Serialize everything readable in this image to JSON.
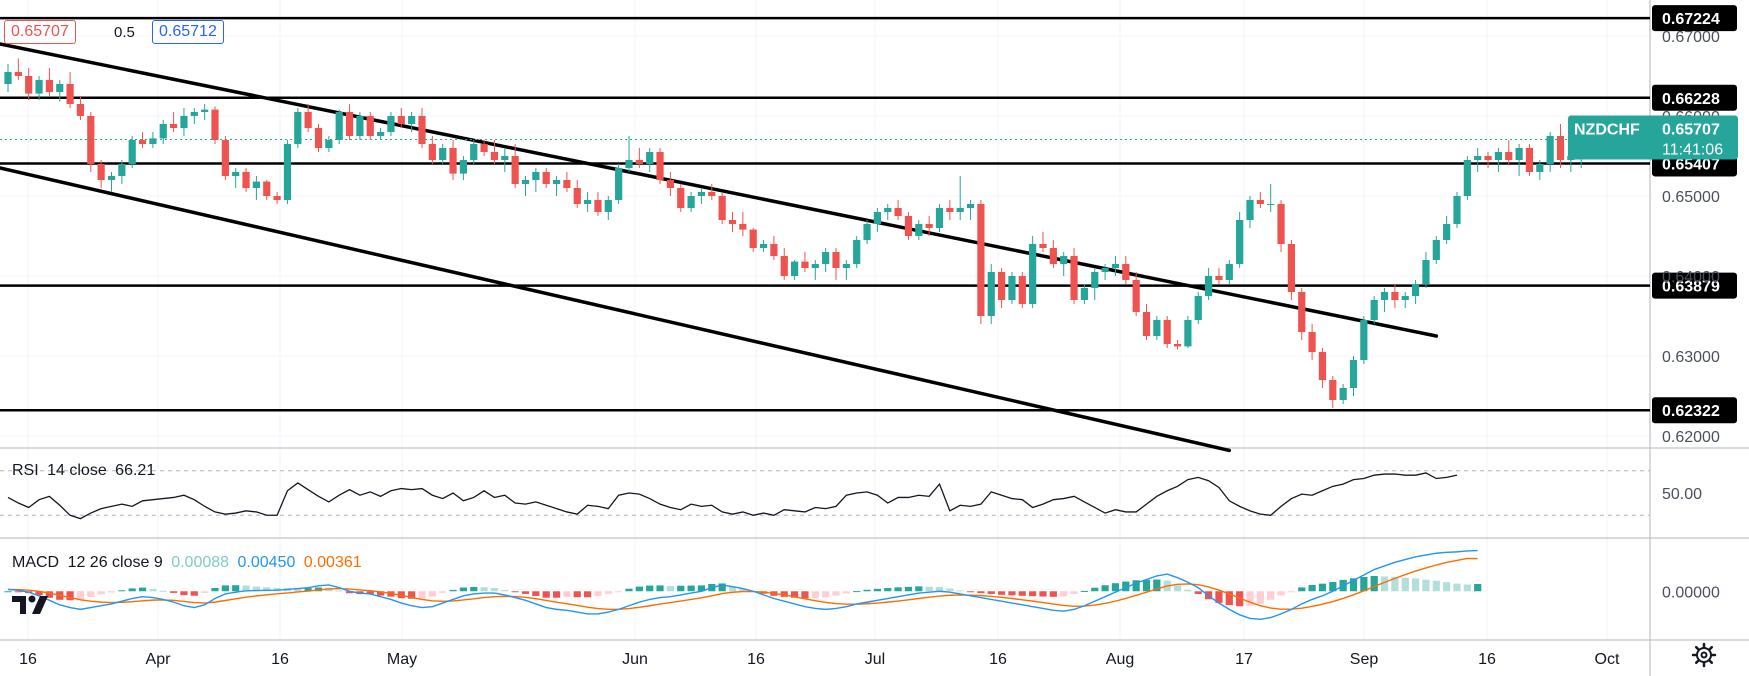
{
  "symbol_badge": {
    "name": "NZDCHF",
    "price": "0.65707",
    "countdown": "11:41:06",
    "color": "#26a69a"
  },
  "order_panel": {
    "sell": "0.65707",
    "spread": "0.5",
    "buy": "0.65712"
  },
  "colors": {
    "up": "#26a69a",
    "down": "#ef5350",
    "rsi": "#131722",
    "macd": "#2196f3",
    "signal": "#ff6d00",
    "hist_up": "#26a69a",
    "hist_up_fade": "#b2dfdb",
    "hist_down": "#ef5350",
    "hist_down_fade": "#ffcdd2"
  },
  "levels": [
    {
      "value": 0.67224,
      "label": "0.67224"
    },
    {
      "value": 0.66228,
      "label": "0.66228"
    },
    {
      "value": 0.65407,
      "label": "0.65407"
    },
    {
      "value": 0.63879,
      "label": "0.63879"
    },
    {
      "value": 0.62322,
      "label": "0.62322"
    }
  ],
  "rsi_panel": {
    "name": "RSI",
    "params": "14 close",
    "value": "66.21",
    "ticks": [
      "50.00"
    ]
  },
  "macd_panel": {
    "name": "MACD",
    "params": "12 26 close 9",
    "histogram": "0.00088",
    "macd": "0.00450",
    "signal": "0.00361",
    "ticks": [
      "0.00000"
    ]
  },
  "chart_data": {
    "type": "candlestick",
    "x_axis": {
      "ticks": [
        "16",
        "Apr",
        "16",
        "May",
        "Jun",
        "16",
        "Jul",
        "16",
        "Aug",
        "17",
        "Sep",
        "16",
        "Oct"
      ]
    },
    "y_axis": {
      "ticks": [
        "0.67000",
        "0.66000",
        "0.65000",
        "0.64000",
        "0.63000",
        "0.62000"
      ],
      "range": [
        0.6185,
        0.6745
      ]
    },
    "trendlines": [
      {
        "from": [
          0,
          0.669
        ],
        "to": [
          138,
          0.6325
        ]
      },
      {
        "from": [
          0,
          0.6535
        ],
        "to": [
          118,
          0.6182
        ]
      }
    ],
    "ohlc": [
      [
        0.664,
        0.6665,
        0.663,
        0.6655
      ],
      [
        0.6655,
        0.6672,
        0.6645,
        0.665
      ],
      [
        0.665,
        0.666,
        0.662,
        0.6628
      ],
      [
        0.6628,
        0.665,
        0.662,
        0.6645
      ],
      [
        0.6645,
        0.666,
        0.6625,
        0.663
      ],
      [
        0.663,
        0.6645,
        0.6618,
        0.664
      ],
      [
        0.664,
        0.6655,
        0.661,
        0.6615
      ],
      [
        0.6615,
        0.6625,
        0.6595,
        0.66
      ],
      [
        0.66,
        0.6605,
        0.653,
        0.654
      ],
      [
        0.654,
        0.6545,
        0.651,
        0.652
      ],
      [
        0.652,
        0.653,
        0.6505,
        0.6525
      ],
      [
        0.6525,
        0.6545,
        0.6515,
        0.654
      ],
      [
        0.654,
        0.6575,
        0.6535,
        0.657
      ],
      [
        0.657,
        0.658,
        0.656,
        0.6565
      ],
      [
        0.6565,
        0.658,
        0.656,
        0.6572
      ],
      [
        0.6572,
        0.6595,
        0.6565,
        0.659
      ],
      [
        0.659,
        0.6605,
        0.658,
        0.6585
      ],
      [
        0.6585,
        0.661,
        0.6575,
        0.66
      ],
      [
        0.66,
        0.661,
        0.659,
        0.6605
      ],
      [
        0.6605,
        0.6615,
        0.6595,
        0.6608
      ],
      [
        0.6608,
        0.6612,
        0.6565,
        0.657
      ],
      [
        0.657,
        0.6575,
        0.652,
        0.6525
      ],
      [
        0.6525,
        0.6535,
        0.651,
        0.653
      ],
      [
        0.653,
        0.6535,
        0.6505,
        0.651
      ],
      [
        0.651,
        0.6525,
        0.6495,
        0.6518
      ],
      [
        0.6518,
        0.652,
        0.6495,
        0.65
      ],
      [
        0.65,
        0.6505,
        0.649,
        0.6495
      ],
      [
        0.6495,
        0.657,
        0.649,
        0.6565
      ],
      [
        0.6565,
        0.661,
        0.656,
        0.6605
      ],
      [
        0.6605,
        0.6615,
        0.658,
        0.6585
      ],
      [
        0.6585,
        0.659,
        0.6555,
        0.656
      ],
      [
        0.656,
        0.6575,
        0.6555,
        0.657
      ],
      [
        0.657,
        0.6608,
        0.6565,
        0.6605
      ],
      [
        0.6605,
        0.6615,
        0.657,
        0.6575
      ],
      [
        0.6575,
        0.6605,
        0.657,
        0.66
      ],
      [
        0.66,
        0.6605,
        0.657,
        0.6575
      ],
      [
        0.6575,
        0.6585,
        0.657,
        0.658
      ],
      [
        0.658,
        0.6605,
        0.6575,
        0.66
      ],
      [
        0.66,
        0.661,
        0.6585,
        0.659
      ],
      [
        0.659,
        0.6605,
        0.658,
        0.66
      ],
      [
        0.66,
        0.661,
        0.656,
        0.6565
      ],
      [
        0.6565,
        0.6575,
        0.654,
        0.6545
      ],
      [
        0.6545,
        0.6565,
        0.654,
        0.656
      ],
      [
        0.656,
        0.657,
        0.652,
        0.6528
      ],
      [
        0.6528,
        0.655,
        0.652,
        0.6545
      ],
      [
        0.6545,
        0.657,
        0.654,
        0.6565
      ],
      [
        0.6565,
        0.657,
        0.655,
        0.6555
      ],
      [
        0.6555,
        0.657,
        0.654,
        0.6545
      ],
      [
        0.6545,
        0.656,
        0.653,
        0.655
      ],
      [
        0.655,
        0.6565,
        0.651,
        0.6515
      ],
      [
        0.6515,
        0.6525,
        0.65,
        0.652
      ],
      [
        0.652,
        0.6535,
        0.6505,
        0.653
      ],
      [
        0.653,
        0.6535,
        0.651,
        0.6515
      ],
      [
        0.6515,
        0.6525,
        0.65,
        0.652
      ],
      [
        0.652,
        0.653,
        0.6505,
        0.651
      ],
      [
        0.651,
        0.652,
        0.6485,
        0.649
      ],
      [
        0.649,
        0.6505,
        0.648,
        0.6495
      ],
      [
        0.6495,
        0.6505,
        0.6475,
        0.648
      ],
      [
        0.648,
        0.65,
        0.647,
        0.6495
      ],
      [
        0.6495,
        0.654,
        0.649,
        0.6535
      ],
      [
        0.6535,
        0.6575,
        0.653,
        0.6545
      ],
      [
        0.6545,
        0.656,
        0.6535,
        0.654
      ],
      [
        0.654,
        0.656,
        0.653,
        0.6555
      ],
      [
        0.6555,
        0.656,
        0.6515,
        0.652
      ],
      [
        0.652,
        0.653,
        0.65,
        0.651
      ],
      [
        0.651,
        0.6515,
        0.648,
        0.6485
      ],
      [
        0.6485,
        0.6505,
        0.648,
        0.65
      ],
      [
        0.65,
        0.651,
        0.649,
        0.6505
      ],
      [
        0.6505,
        0.6515,
        0.6495,
        0.65
      ],
      [
        0.65,
        0.6505,
        0.6465,
        0.647
      ],
      [
        0.647,
        0.648,
        0.6455,
        0.6465
      ],
      [
        0.6465,
        0.648,
        0.645,
        0.6458
      ],
      [
        0.6458,
        0.646,
        0.643,
        0.6435
      ],
      [
        0.6435,
        0.6445,
        0.643,
        0.644
      ],
      [
        0.644,
        0.645,
        0.642,
        0.6425
      ],
      [
        0.6425,
        0.6435,
        0.6395,
        0.64
      ],
      [
        0.64,
        0.642,
        0.6395,
        0.6418
      ],
      [
        0.6418,
        0.643,
        0.6405,
        0.641
      ],
      [
        0.641,
        0.642,
        0.6395,
        0.6415
      ],
      [
        0.6415,
        0.6435,
        0.6405,
        0.643
      ],
      [
        0.643,
        0.6435,
        0.6395,
        0.641
      ],
      [
        0.641,
        0.642,
        0.6395,
        0.6415
      ],
      [
        0.6415,
        0.645,
        0.641,
        0.6445
      ],
      [
        0.6445,
        0.647,
        0.644,
        0.6465
      ],
      [
        0.6465,
        0.6485,
        0.6455,
        0.648
      ],
      [
        0.648,
        0.649,
        0.647,
        0.6485
      ],
      [
        0.6485,
        0.6495,
        0.647,
        0.6475
      ],
      [
        0.6475,
        0.648,
        0.6445,
        0.645
      ],
      [
        0.645,
        0.647,
        0.6445,
        0.6465
      ],
      [
        0.6465,
        0.6475,
        0.645,
        0.646
      ],
      [
        0.646,
        0.649,
        0.6455,
        0.6485
      ],
      [
        0.6485,
        0.6495,
        0.647,
        0.648
      ],
      [
        0.648,
        0.6525,
        0.647,
        0.6485
      ],
      [
        0.6485,
        0.6495,
        0.647,
        0.649
      ],
      [
        0.649,
        0.6495,
        0.634,
        0.635
      ],
      [
        0.635,
        0.6415,
        0.634,
        0.6405
      ],
      [
        0.6405,
        0.641,
        0.636,
        0.637
      ],
      [
        0.637,
        0.6405,
        0.6365,
        0.64
      ],
      [
        0.64,
        0.6405,
        0.636,
        0.6365
      ],
      [
        0.6365,
        0.645,
        0.636,
        0.644
      ],
      [
        0.644,
        0.6455,
        0.643,
        0.6435
      ],
      [
        0.6435,
        0.6445,
        0.641,
        0.6415
      ],
      [
        0.6415,
        0.643,
        0.64,
        0.6425
      ],
      [
        0.6425,
        0.6435,
        0.6365,
        0.637
      ],
      [
        0.637,
        0.639,
        0.6365,
        0.6385
      ],
      [
        0.6385,
        0.641,
        0.637,
        0.6405
      ],
      [
        0.6405,
        0.6415,
        0.6395,
        0.641
      ],
      [
        0.641,
        0.6425,
        0.64,
        0.6415
      ],
      [
        0.6415,
        0.6425,
        0.639,
        0.6395
      ],
      [
        0.6395,
        0.6405,
        0.635,
        0.6355
      ],
      [
        0.6355,
        0.6365,
        0.632,
        0.6325
      ],
      [
        0.6325,
        0.635,
        0.632,
        0.6345
      ],
      [
        0.6345,
        0.635,
        0.631,
        0.6315
      ],
      [
        0.6315,
        0.632,
        0.6308,
        0.6312
      ],
      [
        0.6312,
        0.635,
        0.631,
        0.6345
      ],
      [
        0.6345,
        0.638,
        0.634,
        0.6375
      ],
      [
        0.6375,
        0.641,
        0.637,
        0.64
      ],
      [
        0.64,
        0.641,
        0.639,
        0.6395
      ],
      [
        0.6395,
        0.642,
        0.639,
        0.6415
      ],
      [
        0.6415,
        0.648,
        0.641,
        0.647
      ],
      [
        0.647,
        0.65,
        0.646,
        0.6495
      ],
      [
        0.6495,
        0.6505,
        0.6485,
        0.649
      ],
      [
        0.649,
        0.6515,
        0.648,
        0.649
      ],
      [
        0.649,
        0.6495,
        0.643,
        0.644
      ],
      [
        0.644,
        0.6445,
        0.637,
        0.638
      ],
      [
        0.638,
        0.6385,
        0.632,
        0.633
      ],
      [
        0.633,
        0.634,
        0.6295,
        0.6305
      ],
      [
        0.6305,
        0.631,
        0.626,
        0.627
      ],
      [
        0.627,
        0.6275,
        0.6235,
        0.6245
      ],
      [
        0.6245,
        0.6265,
        0.624,
        0.626
      ],
      [
        0.626,
        0.63,
        0.625,
        0.6295
      ],
      [
        0.6295,
        0.635,
        0.629,
        0.6345
      ],
      [
        0.6345,
        0.6375,
        0.634,
        0.637
      ],
      [
        0.637,
        0.6385,
        0.6355,
        0.638
      ],
      [
        0.638,
        0.639,
        0.636,
        0.637
      ],
      [
        0.637,
        0.638,
        0.636,
        0.6375
      ],
      [
        0.6375,
        0.6395,
        0.6365,
        0.639
      ],
      [
        0.639,
        0.643,
        0.6385,
        0.642
      ],
      [
        0.642,
        0.645,
        0.6415,
        0.6445
      ],
      [
        0.6445,
        0.6475,
        0.644,
        0.6465
      ],
      [
        0.6465,
        0.6505,
        0.646,
        0.65
      ],
      [
        0.65,
        0.655,
        0.6495,
        0.6545
      ],
      [
        0.6545,
        0.656,
        0.653,
        0.655
      ],
      [
        0.655,
        0.6555,
        0.6535,
        0.6545
      ],
      [
        0.6545,
        0.656,
        0.653,
        0.6555
      ],
      [
        0.6555,
        0.657,
        0.654,
        0.6545
      ],
      [
        0.6545,
        0.6565,
        0.6525,
        0.656
      ],
      [
        0.656,
        0.6565,
        0.6525,
        0.653
      ],
      [
        0.653,
        0.6545,
        0.652,
        0.654
      ],
      [
        0.654,
        0.658,
        0.653,
        0.6575
      ],
      [
        0.6575,
        0.659,
        0.6535,
        0.6545
      ],
      [
        0.6545,
        0.6555,
        0.653,
        0.655
      ],
      [
        0.655,
        0.6575,
        0.6535,
        0.6571
      ]
    ],
    "rsi": [
      46,
      41,
      37,
      44,
      47,
      39,
      30,
      27,
      32,
      36,
      38,
      40,
      38,
      43,
      44,
      45,
      46,
      48,
      44,
      38,
      33,
      31,
      32,
      34,
      33,
      30,
      30,
      52,
      59,
      53,
      47,
      42,
      48,
      53,
      48,
      51,
      47,
      52,
      54,
      53,
      54,
      48,
      45,
      50,
      43,
      46,
      52,
      46,
      48,
      41,
      40,
      42,
      39,
      36,
      33,
      31,
      39,
      38,
      36,
      48,
      50,
      49,
      45,
      40,
      37,
      35,
      40,
      38,
      39,
      33,
      31,
      33,
      30,
      32,
      30,
      35,
      34,
      33,
      37,
      36,
      38,
      48,
      50,
      51,
      48,
      41,
      46,
      46,
      48,
      47,
      58,
      34,
      39,
      38,
      40,
      51,
      48,
      45,
      44,
      37,
      40,
      44,
      45,
      47,
      42,
      37,
      32,
      35,
      33,
      33,
      40,
      47,
      52,
      56,
      62,
      64,
      61,
      55,
      43,
      38,
      34,
      31,
      30,
      38,
      45,
      49,
      48,
      52,
      56,
      58,
      62,
      63,
      66,
      67,
      67,
      66,
      66,
      68,
      63,
      64,
      66
    ],
    "macd_line": [
      0.0002,
      0.0001,
      -0.0001,
      -0.0005,
      -0.001,
      -0.0015,
      -0.0018,
      -0.002,
      -0.0018,
      -0.0016,
      -0.0014,
      -0.0011,
      -0.0008,
      -0.0006,
      -0.0007,
      -0.0009,
      -0.0012,
      -0.0016,
      -0.0018,
      -0.0015,
      -0.0008,
      -0.0003,
      -0.0001,
      5e-05,
      8e-05,
      0.0001,
      0.00012,
      0.0002,
      0.0003,
      0.0004,
      0.0006,
      0.0007,
      0.0004,
      0.0,
      -0.0002,
      -0.0003,
      -0.0006,
      -0.0009,
      -0.0013,
      -0.0016,
      -0.0018,
      -0.0017,
      -0.0013,
      -0.0009,
      -0.0005,
      -0.0003,
      -0.0002,
      -0.0002,
      -0.0004,
      -0.0007,
      -0.001,
      -0.0014,
      -0.0018,
      -0.002,
      -0.0021,
      -0.0023,
      -0.0025,
      -0.0025,
      -0.0023,
      -0.002,
      -0.0016,
      -0.0012,
      -0.0009,
      -0.0007,
      -0.0006,
      -0.0004,
      -0.0002,
      0.0,
      0.0004,
      0.0007,
      0.0005,
      0.0003,
      0.0,
      -0.0004,
      -0.0008,
      -0.0011,
      -0.0014,
      -0.0017,
      -0.0019,
      -0.002,
      -0.0019,
      -0.0017,
      -0.0014,
      -0.0012,
      -0.001,
      -0.0008,
      -0.0006,
      -0.0004,
      -0.0002,
      -0.0001,
      0.0,
      -0.0001,
      -0.0003,
      -0.0005,
      -0.0007,
      -0.0009,
      -0.0011,
      -0.0013,
      -0.0015,
      -0.0017,
      -0.0019,
      -0.0021,
      -0.0022,
      -0.002,
      -0.0016,
      -0.0011,
      -0.0006,
      -0.0001,
      0.0004,
      0.0009,
      0.0013,
      0.0017,
      0.0019,
      0.0015,
      0.001,
      0.0004,
      -0.0005,
      -0.0013,
      -0.002,
      -0.0026,
      -0.003,
      -0.0031,
      -0.0029,
      -0.0025,
      -0.002,
      -0.0014,
      -0.0009,
      -0.0005,
      0.0,
      0.0006,
      0.0012,
      0.0018,
      0.0024,
      0.0028,
      0.0032,
      0.0035,
      0.0038,
      0.004,
      0.0042,
      0.0043,
      0.00435,
      0.00445,
      0.0045
    ],
    "signal_line": [
      0.0002,
      0.00018,
      0.00012,
      0.0,
      -0.0002,
      -0.00045,
      -0.0007,
      -0.00095,
      -0.0011,
      -0.0012,
      -0.00125,
      -0.00122,
      -0.00115,
      -0.00105,
      -0.00098,
      -0.00096,
      -0.001,
      -0.00112,
      -0.00125,
      -0.0013,
      -0.0012,
      -0.00102,
      -0.00084,
      -0.00066,
      -0.00051,
      -0.00039,
      -0.00028,
      -0.00018,
      -8e-05,
      2e-05,
      0.00014,
      0.00026,
      0.0003,
      0.00024,
      0.00015,
      6e-05,
      -7e-05,
      -0.00024,
      -0.00045,
      -0.00068,
      -0.0009,
      -0.00106,
      -0.00111,
      -0.00107,
      -0.00096,
      -0.00083,
      -0.0007,
      -0.0006,
      -0.00056,
      -0.00059,
      -0.00067,
      -0.00082,
      -0.00101,
      -0.00121,
      -0.00139,
      -0.00157,
      -0.00176,
      -0.00191,
      -0.00199,
      -0.00199,
      -0.00191,
      -0.00177,
      -0.0016,
      -0.00142,
      -0.00125,
      -0.00108,
      -0.0009,
      -0.00072,
      -0.0005,
      -0.00026,
      -0.00011,
      -3e-05,
      -3e-05,
      -0.0001,
      -0.00024,
      -0.00041,
      -0.00061,
      -0.00083,
      -0.00104,
      -0.00123,
      -0.00136,
      -0.00143,
      -0.00142,
      -0.00138,
      -0.0013,
      -0.0012,
      -0.00108,
      -0.00094,
      -0.0008,
      -0.00066,
      -0.00053,
      -0.00044,
      -0.00041,
      -0.00043,
      -0.00048,
      -0.00057,
      -0.00067,
      -0.0008,
      -0.00094,
      -0.00109,
      -0.00125,
      -0.00142,
      -0.00157,
      -0.00166,
      -0.00164,
      -0.00153,
      -0.00134,
      -0.00109,
      -0.00079,
      -0.00045,
      -0.0001,
      0.00026,
      0.00059,
      0.00077,
      0.00081,
      0.00073,
      0.00048,
      0.00013,
      -0.0003,
      -0.00076,
      -0.00121,
      -0.00159,
      -0.00185,
      -0.00198,
      -0.00198,
      -0.00187,
      -0.00167,
      -0.00143,
      -0.00114,
      -0.00079,
      -0.00039,
      5e-05,
      0.00052,
      0.00098,
      0.00142,
      0.00184,
      0.00223,
      0.00258,
      0.0029,
      0.00318,
      0.00341,
      0.00362,
      0.00361
    ]
  }
}
